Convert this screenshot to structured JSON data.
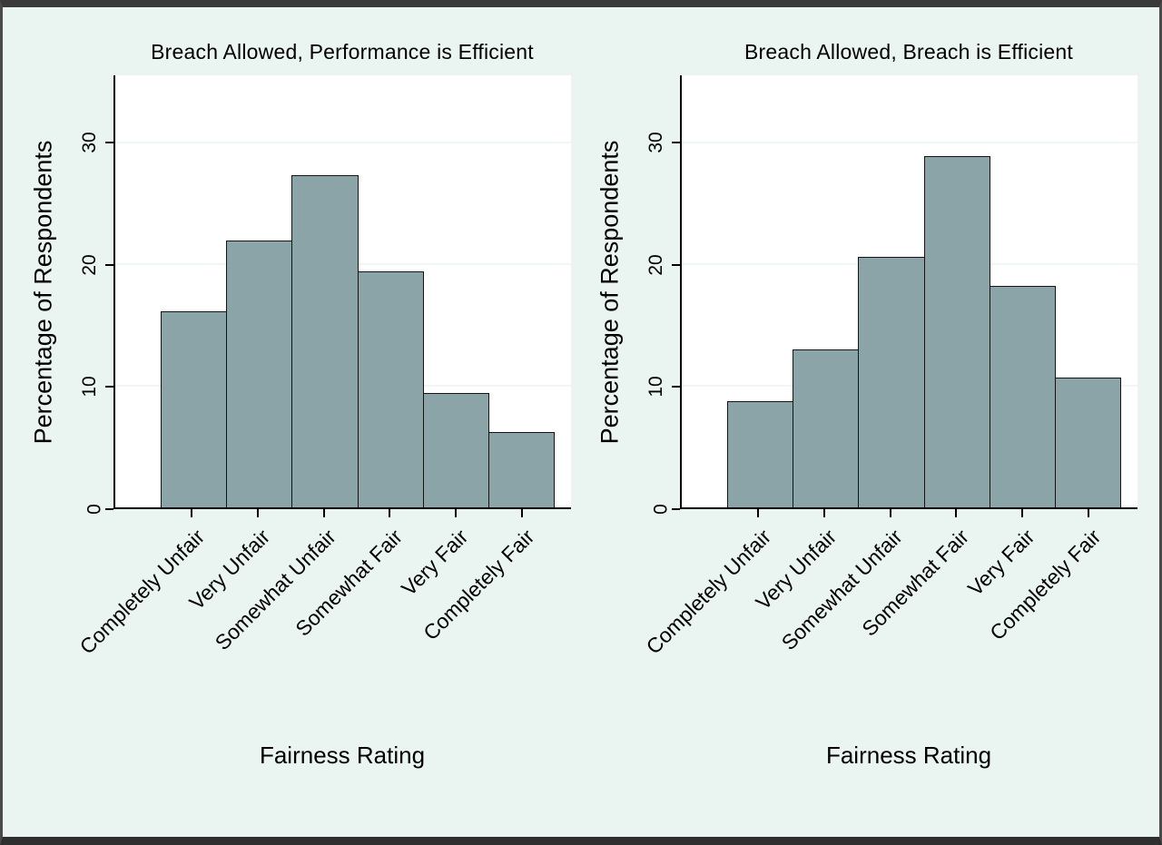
{
  "page": {
    "background_color": "#eaf5f2",
    "frame_color": "#3a3a3a",
    "plot_background": "#ffffff",
    "bar_color": "#8ba4a7",
    "bar_border_color": "#141414"
  },
  "chart_data": [
    {
      "type": "bar",
      "title": "Breach Allowed, Performance is Efficient",
      "xlabel": "Fairness Rating",
      "ylabel": "Percentage of Respondents",
      "categories": [
        "Completely Unfair",
        "Very Unfair",
        "Somewhat Unfair",
        "Somewhat Fair",
        "Very Fair",
        "Completely Fair"
      ],
      "values": [
        16.1,
        21.9,
        27.3,
        19.4,
        9.4,
        6.2
      ],
      "yticks": [
        0,
        10,
        20,
        30
      ],
      "ylim": [
        0,
        35.5
      ],
      "grid": true,
      "legend": "none"
    },
    {
      "type": "bar",
      "title": "Breach Allowed, Breach is Efficient",
      "xlabel": "Fairness Rating",
      "ylabel": "Percentage of Respondents",
      "categories": [
        "Completely Unfair",
        "Very Unfair",
        "Somewhat Unfair",
        "Somewhat Fair",
        "Very Fair",
        "Completely Fair"
      ],
      "values": [
        8.7,
        13.0,
        20.6,
        28.9,
        18.2,
        10.7
      ],
      "yticks": [
        0,
        10,
        20,
        30
      ],
      "ylim": [
        0,
        35.5
      ],
      "grid": true,
      "legend": "none"
    }
  ]
}
